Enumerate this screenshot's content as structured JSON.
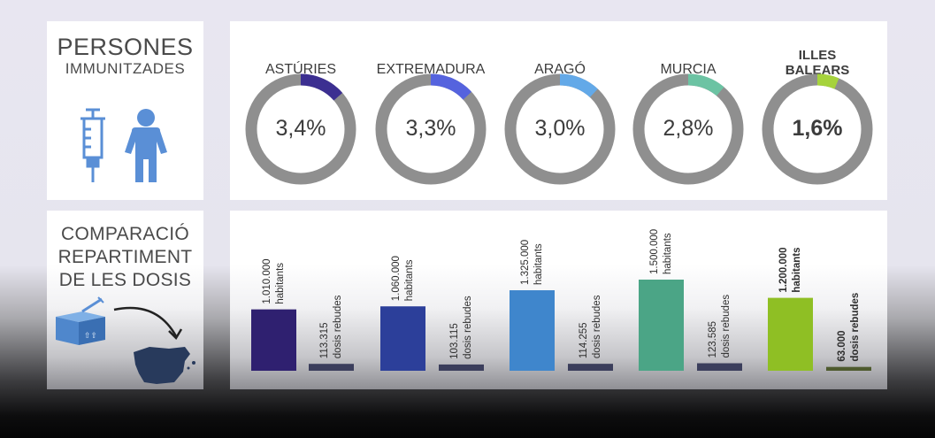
{
  "left_top": {
    "title_line1": "PERSONES",
    "title_line2": "IMMUNITZADES",
    "icons": [
      "syringe-icon",
      "person-icon"
    ]
  },
  "left_bottom": {
    "title_lines": [
      "COMPARACIÓ",
      "REPARTIMENT",
      "DE LES DOSIS"
    ],
    "icons": [
      "vaccine-box-icon",
      "arrow-icon",
      "spain-map-icon"
    ]
  },
  "chart_data": [
    {
      "type": "pie",
      "title": "",
      "donuts": [
        {
          "region": "ASTÚRIES",
          "value": 3.4,
          "label": "3,4%",
          "color": "#3c2f91"
        },
        {
          "region": "EXTREMADURA",
          "value": 3.3,
          "label": "3,3%",
          "color": "#5563de"
        },
        {
          "region": "ARAGÓ",
          "value": 3.0,
          "label": "3,0%",
          "color": "#63a9e8"
        },
        {
          "region": "MURCIA",
          "value": 2.8,
          "label": "2,8%",
          "color": "#6cc3a3"
        },
        {
          "region": "ILLES BALEARS",
          "value": 1.6,
          "label": "1,6%",
          "color": "#a6d33c",
          "highlight": true
        }
      ],
      "track_color": "#8f8f8f"
    },
    {
      "type": "bar",
      "title": "",
      "groups": [
        {
          "region": "ASTÚRIES",
          "habitants": 1010000,
          "dosis": 113315,
          "habitants_label": "1.010.000",
          "dosis_label": "113.315",
          "color": "#2f2070"
        },
        {
          "region": "EXTREMADURA",
          "habitants": 1060000,
          "dosis": 103115,
          "habitants_label": "1.060.000",
          "dosis_label": "103.115",
          "color": "#2c3f9a"
        },
        {
          "region": "ARAGÓ",
          "habitants": 1325000,
          "dosis": 114255,
          "habitants_label": "1.325.000",
          "dosis_label": "114.255",
          "color": "#3f86cc"
        },
        {
          "region": "MURCIA",
          "habitants": 1500000,
          "dosis": 123585,
          "habitants_label": "1.500.000",
          "dosis_label": "123.585",
          "color": "#4ba586"
        },
        {
          "region": "ILLES BALEARS",
          "habitants": 1200000,
          "dosis": 63000,
          "habitants_label": "1.200.000",
          "dosis_label": "63.000",
          "color": "#8fbf24",
          "highlight": true
        }
      ],
      "habitants_word": "habitants",
      "dosis_word": "dosis rebudes"
    }
  ]
}
